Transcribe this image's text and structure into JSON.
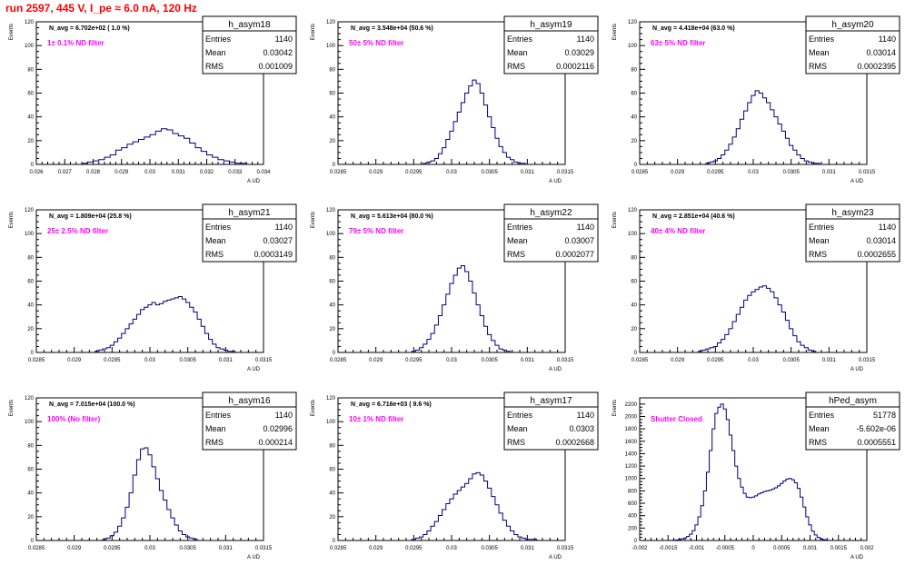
{
  "figure_title": "run 2597,   445 V, I_pe ≈ 6.0 nA, 120 Hz",
  "stats_labels": {
    "entries": "Entries",
    "mean": "Mean",
    "rms": "RMS"
  },
  "colors": {
    "histogram": "#000080",
    "note": "#ff00ff",
    "title": "#ff0000",
    "axis": "#000000"
  },
  "chart_data": [
    {
      "type": "histogram",
      "name": "h_asym18",
      "xlabel": "A_UD",
      "ylabel": "Events",
      "xlim": [
        0.026,
        0.034
      ],
      "ylim": [
        0,
        120
      ],
      "xticks": [
        "0.026",
        "0.027",
        "0.028",
        "0.029",
        "0.03",
        "0.031",
        "0.032",
        "0.033",
        "0.034"
      ],
      "yticks": [
        "0",
        "20",
        "40",
        "60",
        "80",
        "100",
        "120"
      ],
      "nav_label": "N_avg = 6.702e+02 ( 1.0 %)",
      "note": "1± 0.1% ND filter",
      "stats": {
        "entries": "1140",
        "mean": "0.03042",
        "rms": "0.001009"
      },
      "bins": [
        0.0277,
        0.0279,
        0.0281,
        0.0283,
        0.0285,
        0.0287,
        0.0289,
        0.0291,
        0.0293,
        0.0295,
        0.0297,
        0.0299,
        0.0301,
        0.0303,
        0.0305,
        0.0307,
        0.0309,
        0.0311,
        0.0313,
        0.0315,
        0.0317,
        0.0319,
        0.0321,
        0.0323,
        0.0325,
        0.0327,
        0.0329,
        0.0331,
        0.0333
      ],
      "counts": [
        1,
        2,
        3,
        4,
        6,
        8,
        12,
        14,
        17,
        19,
        21,
        23,
        25,
        28,
        30,
        29,
        26,
        24,
        22,
        18,
        14,
        11,
        8,
        6,
        4,
        3,
        2,
        1,
        1
      ]
    },
    {
      "type": "histogram",
      "name": "h_asym19",
      "xlabel": "A_UD",
      "ylabel": "Events",
      "xlim": [
        0.0285,
        0.0315
      ],
      "ylim": [
        0,
        120
      ],
      "xticks": [
        "0.0285",
        "0.029",
        "0.0295",
        "0.03",
        "0.0305",
        "0.031",
        "0.0315"
      ],
      "yticks": [
        "0",
        "20",
        "40",
        "60",
        "80",
        "100",
        "120"
      ],
      "nav_label": "N_avg = 3.548e+04 (50.6 %)",
      "note": "50± 5% ND filter",
      "stats": {
        "entries": "1140",
        "mean": "0.03029",
        "rms": "0.0002116"
      },
      "bins": [
        0.02965,
        0.0297,
        0.02975,
        0.0298,
        0.02985,
        0.0299,
        0.02995,
        0.03,
        0.03005,
        0.0301,
        0.03015,
        0.0302,
        0.03025,
        0.0303,
        0.03035,
        0.0304,
        0.03045,
        0.0305,
        0.03055,
        0.0306,
        0.03065,
        0.0307,
        0.03075,
        0.0308,
        0.03085,
        0.0309,
        0.03095
      ],
      "counts": [
        1,
        2,
        3,
        5,
        9,
        14,
        21,
        28,
        36,
        44,
        52,
        60,
        66,
        71,
        68,
        60,
        50,
        40,
        31,
        22,
        15,
        10,
        6,
        4,
        2,
        1,
        1
      ]
    },
    {
      "type": "histogram",
      "name": "h_asym20",
      "xlabel": "A_UD",
      "ylabel": "Events",
      "xlim": [
        0.0285,
        0.0315
      ],
      "ylim": [
        0,
        120
      ],
      "xticks": [
        "0.0285",
        "0.029",
        "0.0295",
        "0.03",
        "0.0305",
        "0.031",
        "0.0315"
      ],
      "yticks": [
        "0",
        "20",
        "40",
        "60",
        "80",
        "100",
        "120"
      ],
      "nav_label": "N_avg = 4.418e+04 (63.0 %)",
      "note": "63± 5% ND filter",
      "stats": {
        "entries": "1140",
        "mean": "0.03014",
        "rms": "0.0002395"
      },
      "bins": [
        0.0294,
        0.02945,
        0.0295,
        0.02955,
        0.0296,
        0.02965,
        0.0297,
        0.02975,
        0.0298,
        0.02985,
        0.0299,
        0.02995,
        0.03,
        0.03005,
        0.0301,
        0.03015,
        0.0302,
        0.03025,
        0.0303,
        0.03035,
        0.0304,
        0.03045,
        0.0305,
        0.03055,
        0.0306,
        0.03065,
        0.0307,
        0.03075,
        0.0308,
        0.03085
      ],
      "counts": [
        1,
        2,
        3,
        5,
        8,
        12,
        17,
        23,
        30,
        38,
        45,
        52,
        58,
        62,
        60,
        56,
        52,
        46,
        40,
        34,
        28,
        22,
        16,
        12,
        8,
        5,
        3,
        2,
        1,
        1
      ]
    },
    {
      "type": "histogram",
      "name": "h_asym21",
      "xlabel": "A_UD",
      "ylabel": "Events",
      "xlim": [
        0.0285,
        0.0315
      ],
      "ylim": [
        0,
        120
      ],
      "xticks": [
        "0.0285",
        "0.029",
        "0.0295",
        "0.03",
        "0.0305",
        "0.031",
        "0.0315"
      ],
      "yticks": [
        "0",
        "20",
        "40",
        "60",
        "80",
        "100",
        "120"
      ],
      "nav_label": "N_avg = 1.809e+04 (25.8 %)",
      "note": "25± 2.5% ND filter",
      "stats": {
        "entries": "1140",
        "mean": "0.03027",
        "rms": "0.0003149"
      },
      "bins": [
        0.0293,
        0.02935,
        0.0294,
        0.02945,
        0.0295,
        0.02955,
        0.0296,
        0.02965,
        0.0297,
        0.02975,
        0.0298,
        0.02985,
        0.0299,
        0.02995,
        0.03,
        0.03005,
        0.0301,
        0.03015,
        0.0302,
        0.03025,
        0.0303,
        0.03035,
        0.0304,
        0.03045,
        0.0305,
        0.03055,
        0.0306,
        0.03065,
        0.0307,
        0.03075,
        0.0308,
        0.03085,
        0.0309,
        0.03095,
        0.031,
        0.03105,
        0.0311
      ],
      "counts": [
        1,
        2,
        3,
        4,
        6,
        9,
        12,
        16,
        20,
        24,
        28,
        32,
        36,
        38,
        40,
        42,
        40,
        41,
        43,
        44,
        45,
        46,
        47,
        45,
        42,
        38,
        34,
        28,
        22,
        16,
        11,
        7,
        4,
        3,
        2,
        1,
        1
      ]
    },
    {
      "type": "histogram",
      "name": "h_asym22",
      "xlabel": "A_UD",
      "ylabel": "Events",
      "xlim": [
        0.0285,
        0.0315
      ],
      "ylim": [
        0,
        120
      ],
      "xticks": [
        "0.0285",
        "0.029",
        "0.0295",
        "0.03",
        "0.0305",
        "0.031",
        "0.0315"
      ],
      "yticks": [
        "0",
        "20",
        "40",
        "60",
        "80",
        "100",
        "120"
      ],
      "nav_label": "N_avg = 5.613e+04 (80.0 %)",
      "note": "79± 5% ND filter",
      "stats": {
        "entries": "1140",
        "mean": "0.03007",
        "rms": "0.0002077"
      },
      "bins": [
        0.0295,
        0.02955,
        0.0296,
        0.02965,
        0.0297,
        0.02975,
        0.0298,
        0.02985,
        0.0299,
        0.02995,
        0.03,
        0.03005,
        0.0301,
        0.03015,
        0.0302,
        0.03025,
        0.0303,
        0.03035,
        0.0304,
        0.03045,
        0.0305,
        0.03055,
        0.0306,
        0.03065,
        0.0307,
        0.03075
      ],
      "counts": [
        1,
        2,
        4,
        7,
        11,
        16,
        23,
        31,
        40,
        49,
        58,
        65,
        71,
        73,
        68,
        60,
        50,
        40,
        31,
        22,
        15,
        10,
        6,
        3,
        2,
        1
      ]
    },
    {
      "type": "histogram",
      "name": "h_asym23",
      "xlabel": "A_UD",
      "ylabel": "Events",
      "xlim": [
        0.0285,
        0.0315
      ],
      "ylim": [
        0,
        120
      ],
      "xticks": [
        "0.0285",
        "0.029",
        "0.0295",
        "0.03",
        "0.0305",
        "0.031",
        "0.0315"
      ],
      "yticks": [
        "0",
        "20",
        "40",
        "60",
        "80",
        "100",
        "120"
      ],
      "nav_label": "N_avg = 2.851e+04 (40.6 %)",
      "note": "40± 4% ND filter",
      "stats": {
        "entries": "1140",
        "mean": "0.03014",
        "rms": "0.0002655"
      },
      "bins": [
        0.0293,
        0.02935,
        0.0294,
        0.02945,
        0.0295,
        0.02955,
        0.0296,
        0.02965,
        0.0297,
        0.02975,
        0.0298,
        0.02985,
        0.0299,
        0.02995,
        0.03,
        0.03005,
        0.0301,
        0.03015,
        0.0302,
        0.03025,
        0.0303,
        0.03035,
        0.0304,
        0.03045,
        0.0305,
        0.03055,
        0.0306,
        0.03065,
        0.0307,
        0.03075,
        0.0308
      ],
      "counts": [
        1,
        2,
        3,
        4,
        5,
        8,
        11,
        15,
        20,
        26,
        32,
        38,
        44,
        48,
        51,
        53,
        55,
        56,
        54,
        51,
        46,
        40,
        34,
        27,
        20,
        14,
        9,
        6,
        4,
        2,
        1
      ]
    },
    {
      "type": "histogram",
      "name": "h_asym16",
      "xlabel": "A_UD",
      "ylabel": "Events",
      "xlim": [
        0.0285,
        0.0315
      ],
      "ylim": [
        0,
        120
      ],
      "xticks": [
        "0.0285",
        "0.029",
        "0.0295",
        "0.03",
        "0.0305",
        "0.031",
        "0.0315"
      ],
      "yticks": [
        "0",
        "20",
        "40",
        "60",
        "80",
        "100",
        "120"
      ],
      "nav_label": "N_avg = 7.015e+04 (100.0 %)",
      "note": "100% (No filter)",
      "stats": {
        "entries": "1140",
        "mean": "0.02996",
        "rms": "0.000214"
      },
      "bins": [
        0.0294,
        0.02945,
        0.0295,
        0.02955,
        0.0296,
        0.02965,
        0.0297,
        0.02975,
        0.0298,
        0.02985,
        0.0299,
        0.02995,
        0.03,
        0.03005,
        0.0301,
        0.03015,
        0.0302,
        0.03025,
        0.0303,
        0.03035,
        0.0304,
        0.03045,
        0.0305,
        0.03055,
        0.0306
      ],
      "counts": [
        1,
        2,
        4,
        7,
        12,
        19,
        28,
        40,
        55,
        68,
        77,
        78,
        72,
        62,
        52,
        42,
        34,
        26,
        19,
        13,
        8,
        5,
        3,
        2,
        1
      ]
    },
    {
      "type": "histogram",
      "name": "h_asym17",
      "xlabel": "A_UD",
      "ylabel": "Events",
      "xlim": [
        0.0285,
        0.0315
      ],
      "ylim": [
        0,
        120
      ],
      "xticks": [
        "0.0285",
        "0.029",
        "0.0295",
        "0.03",
        "0.0305",
        "0.031",
        "0.0315"
      ],
      "yticks": [
        "0",
        "20",
        "40",
        "60",
        "80",
        "100",
        "120"
      ],
      "nav_label": "N_avg = 6.716e+03 ( 9.6 %)",
      "note": "10± 1% ND filter",
      "stats": {
        "entries": "1140",
        "mean": "0.0303",
        "rms": "0.0002668"
      },
      "bins": [
        0.0295,
        0.02955,
        0.0296,
        0.02965,
        0.0297,
        0.02975,
        0.0298,
        0.02985,
        0.0299,
        0.02995,
        0.03,
        0.03005,
        0.0301,
        0.03015,
        0.0302,
        0.03025,
        0.0303,
        0.03035,
        0.0304,
        0.03045,
        0.0305,
        0.03055,
        0.0306,
        0.03065,
        0.0307,
        0.03075,
        0.0308,
        0.03085,
        0.0309,
        0.03095,
        0.031,
        0.03105,
        0.0311
      ],
      "counts": [
        1,
        2,
        3,
        5,
        8,
        12,
        16,
        21,
        26,
        31,
        35,
        39,
        42,
        45,
        48,
        52,
        56,
        57,
        55,
        50,
        44,
        37,
        30,
        23,
        17,
        12,
        8,
        5,
        3,
        2,
        1,
        1,
        1
      ]
    },
    {
      "type": "histogram",
      "name": "hPed_asym",
      "xlabel": "A_UD",
      "ylabel": "Events",
      "xlim": [
        -0.002,
        0.002
      ],
      "ylim": [
        0,
        2300
      ],
      "xticks": [
        "-0.002",
        "-0.0015",
        "-0.001",
        "-0.0005",
        "0",
        "0.0005",
        "0.001",
        "0.0015",
        "0.002"
      ],
      "yticks": [
        "0",
        "200",
        "400",
        "600",
        "800",
        "1000",
        "1200",
        "1400",
        "1600",
        "1800",
        "2000",
        "2200"
      ],
      "nav_label": "",
      "note": "Shutter Closed",
      "stats": {
        "entries": "51778",
        "mean": "-5.602e-06",
        "rms": "0.0005551"
      },
      "bins": [
        -0.0014,
        -0.00135,
        -0.0013,
        -0.00125,
        -0.0012,
        -0.00115,
        -0.0011,
        -0.00105,
        -0.001,
        -0.00095,
        -0.0009,
        -0.00085,
        -0.0008,
        -0.00075,
        -0.0007,
        -0.00065,
        -0.0006,
        -0.00055,
        -0.0005,
        -0.00045,
        -0.0004,
        -0.00035,
        -0.0003,
        -0.00025,
        -0.0002,
        -0.00015,
        -0.0001,
        -5e-05,
        0.0,
        5e-05,
        0.0001,
        0.00015,
        0.0002,
        0.00025,
        0.0003,
        0.00035,
        0.0004,
        0.00045,
        0.0005,
        0.00055,
        0.0006,
        0.00065,
        0.0007,
        0.00075,
        0.0008,
        0.00085,
        0.0009,
        0.00095,
        0.001,
        0.00105,
        0.0011,
        0.00115,
        0.0012,
        0.00125,
        0.0013
      ],
      "counts": [
        4,
        8,
        15,
        25,
        40,
        65,
        100,
        160,
        250,
        380,
        560,
        800,
        1100,
        1450,
        1800,
        2050,
        2150,
        2200,
        2120,
        1950,
        1700,
        1450,
        1200,
        1000,
        860,
        760,
        700,
        690,
        700,
        720,
        750,
        770,
        790,
        800,
        810,
        830,
        850,
        880,
        920,
        960,
        990,
        1000,
        980,
        930,
        840,
        700,
        540,
        380,
        250,
        150,
        90,
        50,
        25,
        12,
        5
      ]
    }
  ]
}
